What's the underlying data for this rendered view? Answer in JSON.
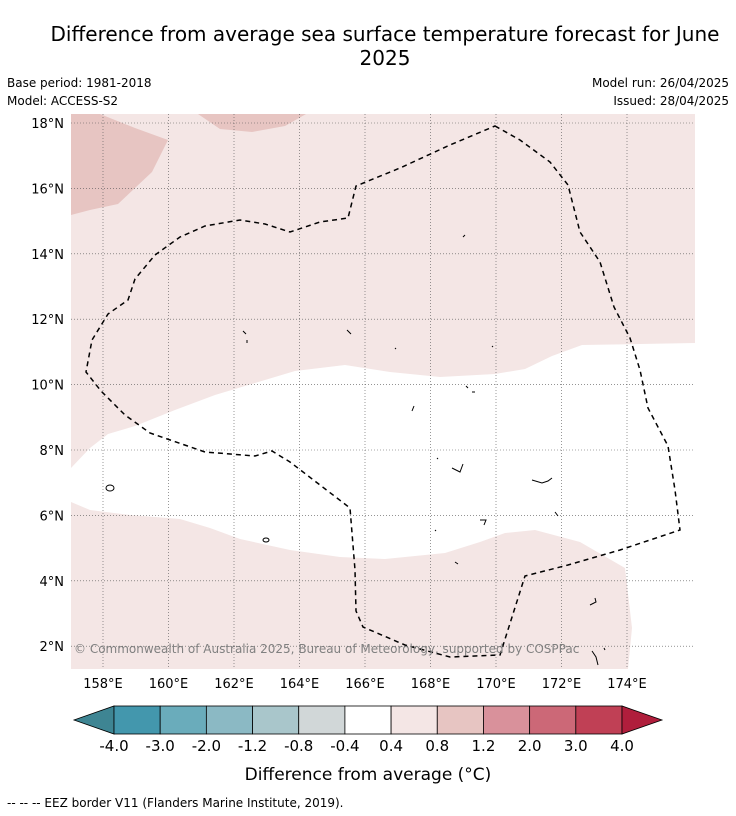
{
  "title": "Difference from average sea surface temperature forecast for June 2025",
  "meta": {
    "base_period": "Base period: 1981-2018",
    "model": "Model: ACCESS-S2",
    "model_run": "Model run: 26/04/2025",
    "issued": "Issued: 28/04/2025"
  },
  "map": {
    "lat_labels": [
      "18°N",
      "16°N",
      "14°N",
      "12°N",
      "10°N",
      "8°N",
      "6°N",
      "4°N",
      "2°N"
    ],
    "lon_labels": [
      "158°E",
      "160°E",
      "162°E",
      "164°E",
      "166°E",
      "168°E",
      "170°E",
      "172°E",
      "174°E"
    ],
    "copyright": "© Commonwealth of Australia 2025, Bureau of Meteorology, supported by COSPPac",
    "region_colors": {
      "0.4_to_0.8": "#f4e6e5",
      "0.8_to_1.2": "#e7c5c2",
      "-0.4_to_0.4": "#ffffff"
    }
  },
  "colorbar": {
    "tick_labels": [
      "-4.0",
      "-3.0",
      "-2.0",
      "-1.2",
      "-0.8",
      "-0.4",
      "0.4",
      "0.8",
      "1.2",
      "2.0",
      "3.0",
      "4.0"
    ],
    "colors": [
      "#4397ad",
      "#6aacbb",
      "#8bb9c4",
      "#a9c6cb",
      "#d1d7d8",
      "#ffffff",
      "#f4e6e5",
      "#e7c5c2",
      "#d9919b",
      "#cc6877",
      "#c04055"
    ],
    "under_color": "#3e8593",
    "over_color": "#b01e3c",
    "label": "Difference from average (°C)"
  },
  "footer": "--  --  -- EEZ border V11 (Flanders Marine Institute, 2019)."
}
